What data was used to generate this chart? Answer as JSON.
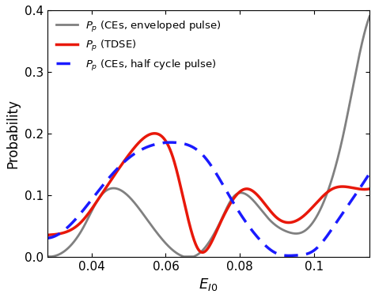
{
  "xlim": [
    0.028,
    0.115
  ],
  "ylim": [
    0.0,
    0.4
  ],
  "xlabel": "E_{I0}",
  "ylabel": "Probability",
  "xticks": [
    0.04,
    0.06,
    0.08,
    0.1
  ],
  "yticks": [
    0.0,
    0.1,
    0.2,
    0.3,
    0.4
  ],
  "legend": [
    {
      "label": "$P_p$ (TDSE)",
      "color": "#e8180a",
      "lw": 2.5,
      "ls": "solid"
    },
    {
      "label": "$P_p$ (CEs, enveloped pulse)",
      "color": "#808080",
      "lw": 2.0,
      "ls": "solid"
    },
    {
      "label": "$P_p$ (CEs, half cycle pulse)",
      "color": "#1a1aff",
      "lw": 2.5,
      "ls": "dotted"
    }
  ],
  "bg_color": "#ffffff"
}
